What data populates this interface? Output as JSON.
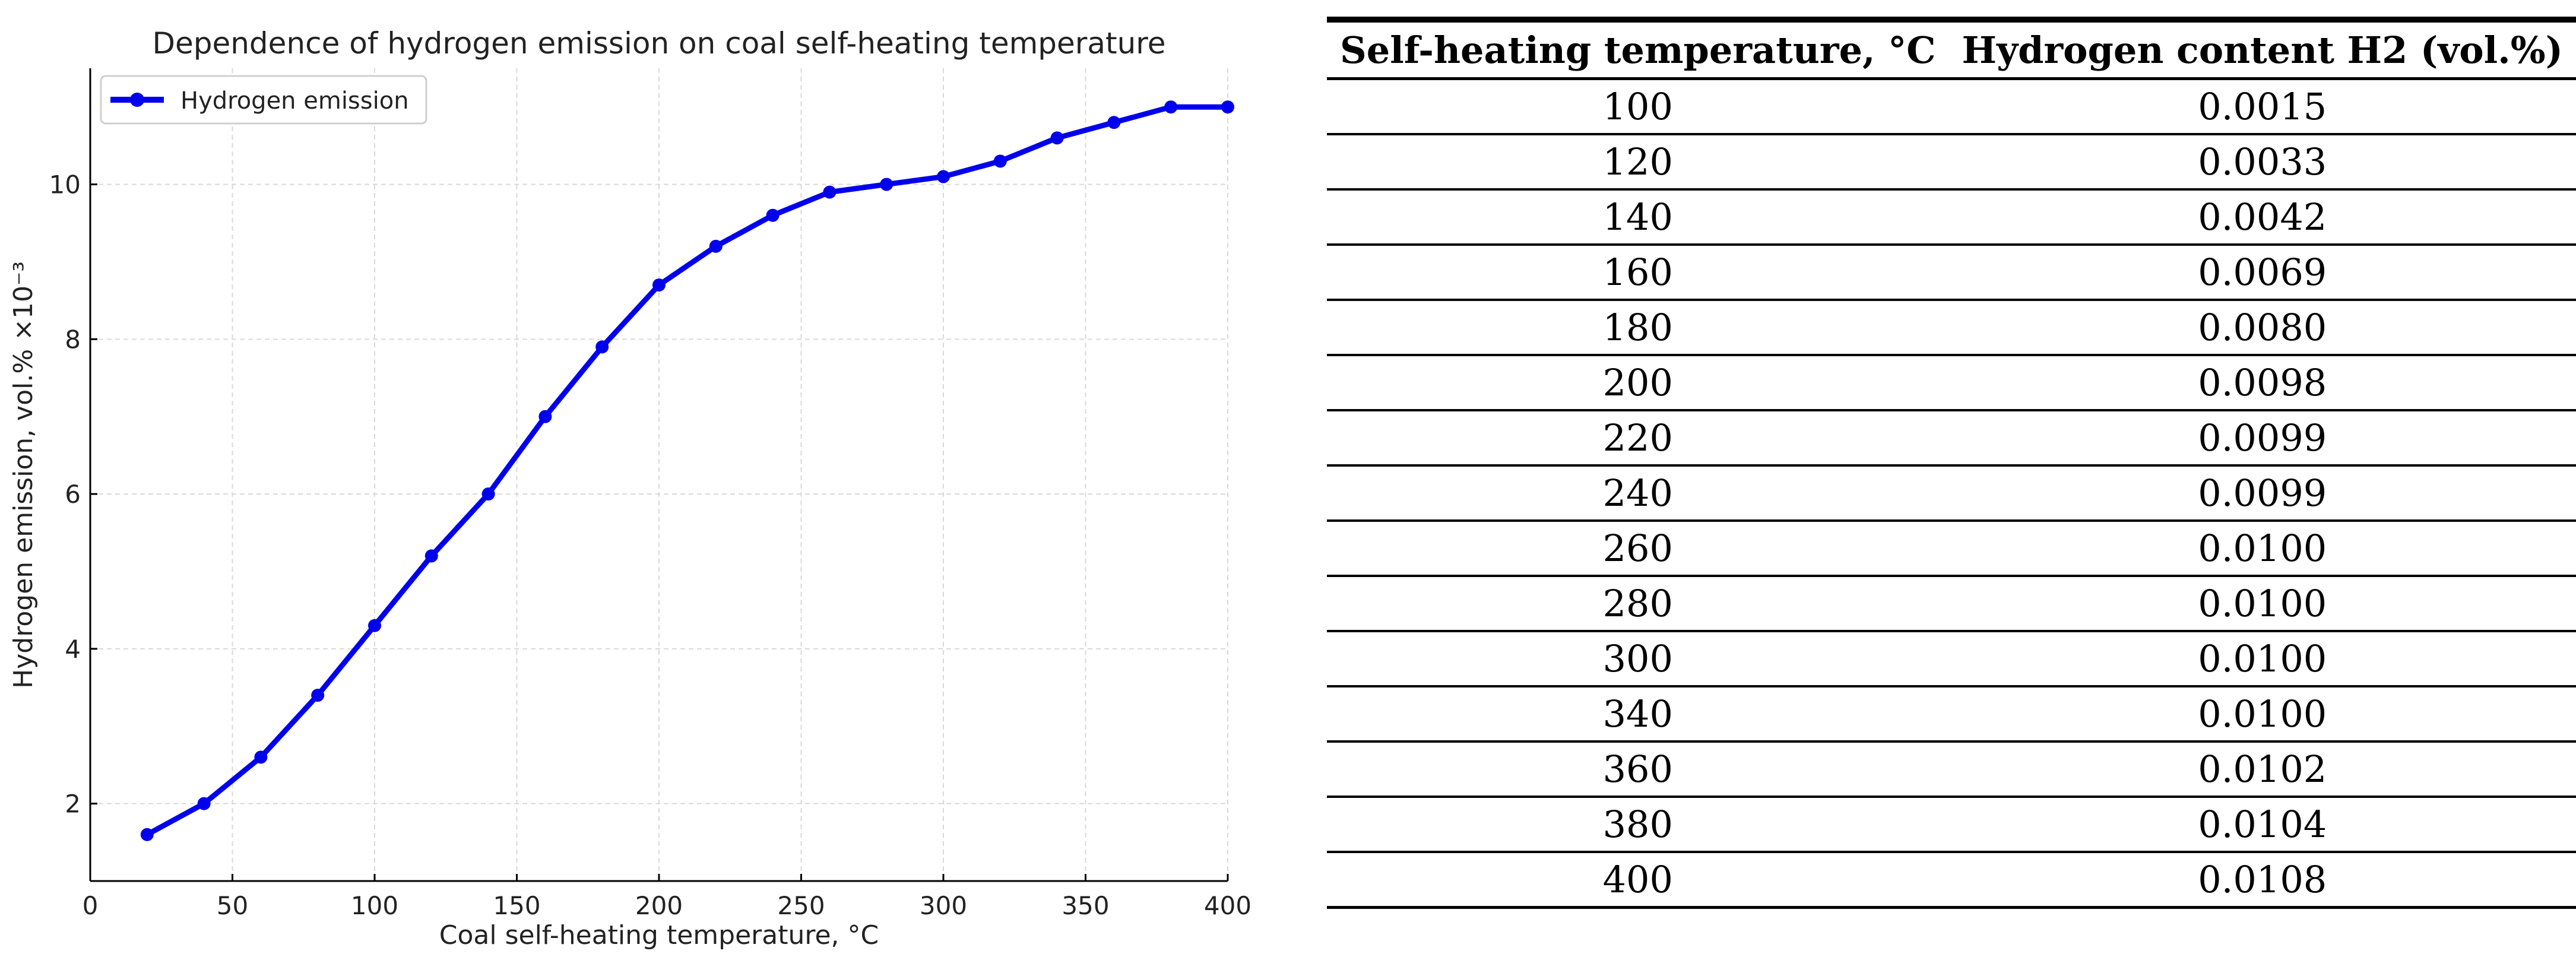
{
  "chart_data": {
    "type": "line",
    "title": "Dependence of hydrogen emission on coal self-heating temperature",
    "xlabel": "Coal self-heating temperature, °C",
    "ylabel": "Hydrogen emission, vol.% ×10⁻³",
    "xlim": [
      0,
      400
    ],
    "ylim": [
      1,
      11.5
    ],
    "xticks": [
      0,
      50,
      100,
      150,
      200,
      250,
      300,
      350,
      400
    ],
    "yticks": [
      2,
      4,
      6,
      8,
      10
    ],
    "grid": true,
    "legend": "top-left",
    "series": [
      {
        "name": "Hydrogen emission",
        "color": "#0000ee",
        "x": [
          20,
          40,
          60,
          80,
          100,
          120,
          140,
          160,
          180,
          200,
          220,
          240,
          260,
          280,
          300,
          320,
          340,
          360,
          380,
          400
        ],
        "y": [
          1.6,
          2.0,
          2.6,
          3.4,
          4.3,
          5.2,
          6.0,
          7.0,
          7.9,
          8.7,
          9.2,
          9.6,
          9.9,
          10.0,
          10.1,
          10.3,
          10.6,
          10.8,
          11.0,
          11.0
        ]
      }
    ]
  },
  "table": {
    "headers": [
      "Self-heating temperature, °C",
      "Hydrogen content H2 (vol.%)"
    ],
    "rows": [
      [
        "100",
        "0.0015"
      ],
      [
        "120",
        "0.0033"
      ],
      [
        "140",
        "0.0042"
      ],
      [
        "160",
        "0.0069"
      ],
      [
        "180",
        "0.0080"
      ],
      [
        "200",
        "0.0098"
      ],
      [
        "220",
        "0.0099"
      ],
      [
        "240",
        "0.0099"
      ],
      [
        "260",
        "0.0100"
      ],
      [
        "280",
        "0.0100"
      ],
      [
        "300",
        "0.0100"
      ],
      [
        "340",
        "0.0100"
      ],
      [
        "360",
        "0.0102"
      ],
      [
        "380",
        "0.0104"
      ],
      [
        "400",
        "0.0108"
      ]
    ]
  }
}
